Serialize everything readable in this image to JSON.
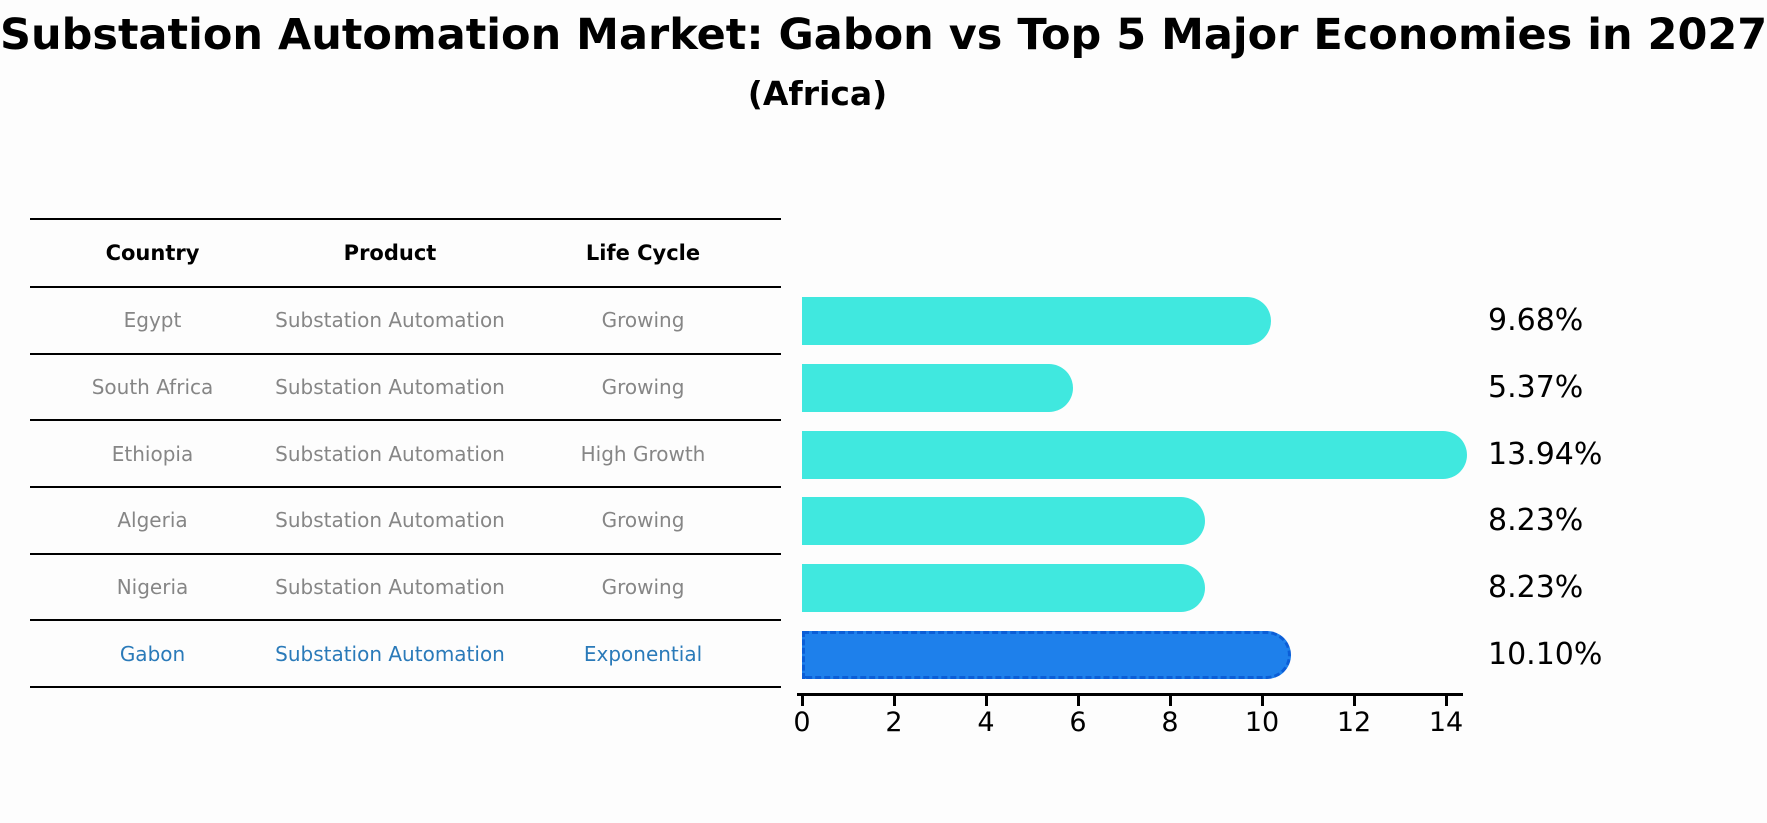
{
  "title": "Substation Automation Market: Gabon vs Top 5 Major Economies in 2027",
  "subtitle": "(Africa)",
  "table": {
    "headers": {
      "country": "Country",
      "product": "Product",
      "life_cycle": "Life Cycle"
    },
    "rows": [
      {
        "country": "Egypt",
        "product": "Substation Automation",
        "life_cycle": "Growing",
        "highlight": false
      },
      {
        "country": "South Africa",
        "product": "Substation Automation",
        "life_cycle": "Growing",
        "highlight": false
      },
      {
        "country": "Ethiopia",
        "product": "Substation Automation",
        "life_cycle": "High Growth",
        "highlight": false
      },
      {
        "country": "Algeria",
        "product": "Substation Automation",
        "life_cycle": "Growing",
        "highlight": false
      },
      {
        "country": "Nigeria",
        "product": "Substation Automation",
        "life_cycle": "Growing",
        "highlight": false
      },
      {
        "country": "Gabon",
        "product": "Substation Automation",
        "life_cycle": "Exponential",
        "highlight": true
      }
    ]
  },
  "chart_data": {
    "type": "bar",
    "orientation": "horizontal",
    "title": "Substation Automation Market: Gabon vs Top 5 Major Economies in 2027",
    "subtitle": "(Africa)",
    "categories": [
      "Egypt",
      "South Africa",
      "Ethiopia",
      "Algeria",
      "Nigeria",
      "Gabon"
    ],
    "values": [
      9.68,
      5.37,
      13.94,
      8.23,
      8.23,
      10.1
    ],
    "value_labels": [
      "9.68%",
      "5.37%",
      "13.94%",
      "8.23%",
      "8.23%",
      "10.10%"
    ],
    "xlabel": "",
    "ylabel": "",
    "xlim": [
      0,
      14.6
    ],
    "xticks": [
      0,
      2,
      4,
      6,
      8,
      10,
      12,
      14
    ],
    "grid": false,
    "legend": false,
    "highlight_index": 5,
    "bar_color": "#40E8DF",
    "highlight_bar_color": "#1E80EB",
    "highlight_bar_border": "#0B5ED7"
  },
  "colors": {
    "background": "#fdfdfd",
    "table_text": "#868686",
    "table_header_text": "#000000",
    "highlight_text": "#2a7ab9",
    "axis": "#000000",
    "value_label_text": "#000000"
  }
}
